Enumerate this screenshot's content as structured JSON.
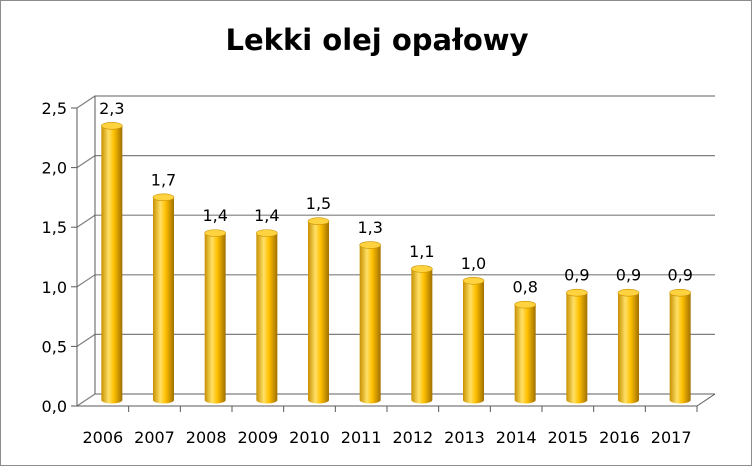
{
  "chart_data": {
    "type": "bar",
    "title": "Lekki olej opałowy",
    "categories": [
      "2006",
      "2007",
      "2008",
      "2009",
      "2010",
      "2011",
      "2012",
      "2013",
      "2014",
      "2015",
      "2016",
      "2017"
    ],
    "values": [
      2.3,
      1.7,
      1.4,
      1.4,
      1.5,
      1.3,
      1.1,
      1.0,
      0.8,
      0.9,
      0.9,
      0.9
    ],
    "data_labels": [
      "2,3",
      "1,7",
      "1,4",
      "1,4",
      "1,5",
      "1,3",
      "1,1",
      "1,0",
      "0,8",
      "0,9",
      "0,9",
      "0,9"
    ],
    "y_ticks": [
      0,
      0.5,
      1.0,
      1.5,
      2.0,
      2.5
    ],
    "y_tick_labels": [
      "0,0",
      "0,5",
      "1,0",
      "1,5",
      "2,0",
      "2,5"
    ],
    "ylim": [
      0,
      2.5
    ],
    "grid": true,
    "legend": "none",
    "bar_style": "3d-cylinder",
    "colors": {
      "bar_light": "#FFE066",
      "bar_mid": "#FFC000",
      "bar_dark": "#B07D00",
      "bar_top": "#FFD23F",
      "grid": "#7f7f7f",
      "axis": "#595959"
    }
  }
}
